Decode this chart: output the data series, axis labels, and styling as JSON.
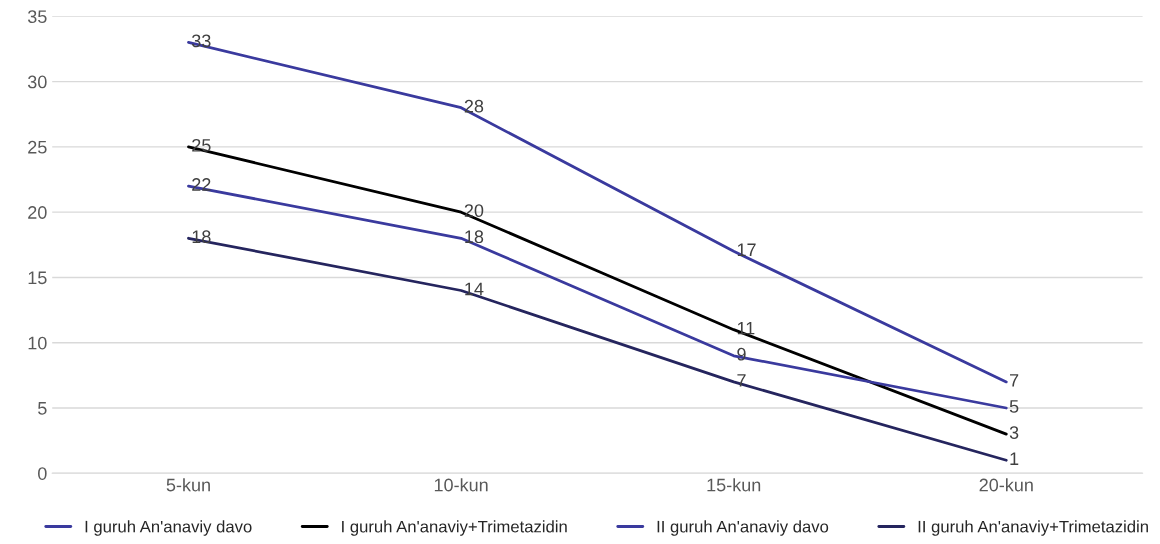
{
  "chart_data": {
    "type": "line",
    "categories": [
      "5-kun",
      "10-kun",
      "15-kun",
      "20-kun"
    ],
    "series": [
      {
        "name": "I guruh An'anaviy davo",
        "color": "#3a3a9e",
        "values": [
          33,
          28,
          17,
          7
        ]
      },
      {
        "name": "I guruh An'anaviy+Trimetazidin",
        "color": "#000000",
        "values": [
          25,
          20,
          11,
          3
        ]
      },
      {
        "name": "II guruh An'anaviy davo",
        "color": "#3a3a9e",
        "values": [
          22,
          18,
          9,
          5
        ]
      },
      {
        "name": "II guruh An'anaviy+Trimetazidin",
        "color": "#25255e",
        "values": [
          18,
          14,
          7,
          1
        ]
      }
    ],
    "ylim": [
      0,
      35
    ],
    "yticks": [
      0,
      5,
      10,
      15,
      20,
      25,
      30,
      35
    ],
    "grid": "y",
    "legend": "bottom",
    "data_labels": true,
    "marker": "none",
    "line_style": "solid"
  }
}
